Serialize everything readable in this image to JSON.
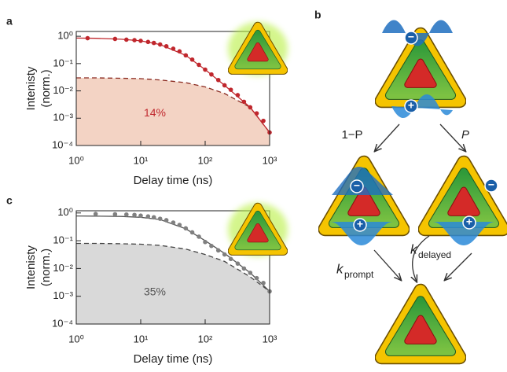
{
  "chart_data": [
    {
      "type": "scatter",
      "panel": "a",
      "xlabel": "Delay time (ns)",
      "ylabel": [
        "Intenisty",
        "(norm.)"
      ],
      "annotation": "14%",
      "annotation_color": "#c0272d",
      "log_x": true,
      "log_y": true,
      "xlim": [
        1,
        1000
      ],
      "ylim": [
        0.0001,
        1.5
      ],
      "xticks": [
        {
          "value": 1,
          "label": "10⁰"
        },
        {
          "value": 10,
          "label": "10¹"
        },
        {
          "value": 100,
          "label": "10²"
        },
        {
          "value": 1000,
          "label": "10³"
        }
      ],
      "yticks": [
        {
          "value": 0.0001,
          "label": "10⁻⁴"
        },
        {
          "value": 0.001,
          "label": "10⁻³"
        },
        {
          "value": 0.01,
          "label": "10⁻²"
        },
        {
          "value": 0.1,
          "label": "10⁻¹"
        },
        {
          "value": 1,
          "label": "10⁰"
        }
      ],
      "series": [
        {
          "style": "dashed",
          "color": "#8a2a20",
          "fill": "#f3d3c4",
          "x": [
            1,
            2,
            5,
            10,
            20,
            50,
            100,
            200,
            500,
            1000
          ],
          "values": [
            0.03,
            0.03,
            0.029,
            0.028,
            0.025,
            0.02,
            0.014,
            0.008,
            0.0025,
            0.0003
          ]
        },
        {
          "style": "line",
          "color": "#c0272d",
          "x": [
            1,
            2,
            5,
            10,
            20,
            50,
            100,
            200,
            500,
            1000
          ],
          "values": [
            0.86,
            0.84,
            0.78,
            0.68,
            0.5,
            0.2,
            0.06,
            0.016,
            0.0025,
            0.0003
          ]
        },
        {
          "style": "points",
          "color": "#c0272d",
          "x": [
            1.5,
            4,
            6,
            8,
            10,
            13,
            16,
            20,
            25,
            32,
            40,
            50,
            63,
            80,
            100,
            125,
            160,
            200,
            250,
            320,
            400,
            500,
            630,
            800,
            1000
          ],
          "values": [
            0.85,
            0.8,
            0.75,
            0.72,
            0.68,
            0.62,
            0.57,
            0.5,
            0.43,
            0.35,
            0.28,
            0.2,
            0.14,
            0.09,
            0.06,
            0.04,
            0.025,
            0.016,
            0.011,
            0.007,
            0.004,
            0.0025,
            0.0015,
            0.0008,
            0.0003
          ]
        }
      ]
    },
    {
      "type": "scatter",
      "panel": "c",
      "xlabel": "Delay time (ns)",
      "ylabel": [
        "Intenisty",
        "(norm.)"
      ],
      "annotation": "35%",
      "annotation_color": "#555555",
      "log_x": true,
      "log_y": true,
      "xlim": [
        1,
        1000
      ],
      "ylim": [
        0.0001,
        1.2
      ],
      "xticks": [
        {
          "value": 1,
          "label": "10⁰"
        },
        {
          "value": 10,
          "label": "10¹"
        },
        {
          "value": 100,
          "label": "10²"
        },
        {
          "value": 1000,
          "label": "10³"
        }
      ],
      "yticks": [
        {
          "value": 0.0001,
          "label": "10⁻⁴"
        },
        {
          "value": 0.001,
          "label": "10⁻³"
        },
        {
          "value": 0.01,
          "label": "10⁻²"
        },
        {
          "value": 0.1,
          "label": "10⁻¹"
        },
        {
          "value": 1,
          "label": "10⁰"
        }
      ],
      "series": [
        {
          "style": "dashed",
          "color": "#444444",
          "fill": "#d9d9d9",
          "x": [
            1,
            2,
            5,
            10,
            20,
            50,
            100,
            200,
            500,
            1000
          ],
          "values": [
            0.08,
            0.08,
            0.078,
            0.075,
            0.068,
            0.05,
            0.032,
            0.018,
            0.005,
            0.0015
          ]
        },
        {
          "style": "line",
          "color": "#555555",
          "x": [
            1,
            2,
            5,
            10,
            20,
            50,
            100,
            200,
            500,
            1000
          ],
          "values": [
            0.78,
            0.77,
            0.75,
            0.7,
            0.58,
            0.27,
            0.1,
            0.035,
            0.007,
            0.0015
          ]
        },
        {
          "style": "points",
          "color": "#808080",
          "x": [
            2,
            4,
            6,
            8,
            10,
            13,
            16,
            20,
            25,
            32,
            40,
            50,
            63,
            80,
            100,
            125,
            160,
            200,
            250,
            320,
            400,
            500,
            630,
            800,
            1000
          ],
          "values": [
            0.92,
            0.9,
            0.88,
            0.85,
            0.8,
            0.75,
            0.7,
            0.62,
            0.55,
            0.45,
            0.37,
            0.28,
            0.2,
            0.14,
            0.09,
            0.065,
            0.045,
            0.032,
            0.022,
            0.015,
            0.01,
            0.007,
            0.0045,
            0.003,
            0.0015
          ]
        }
      ]
    }
  ],
  "diagram": {
    "panel": "b",
    "branch_left": "1−P",
    "branch_right": "P",
    "k_prompt": {
      "symbol": "k",
      "subscript": "prompt"
    },
    "k_delayed": {
      "symbol": "k",
      "subscript": "delayed"
    },
    "charges": [
      "−",
      "+"
    ]
  }
}
